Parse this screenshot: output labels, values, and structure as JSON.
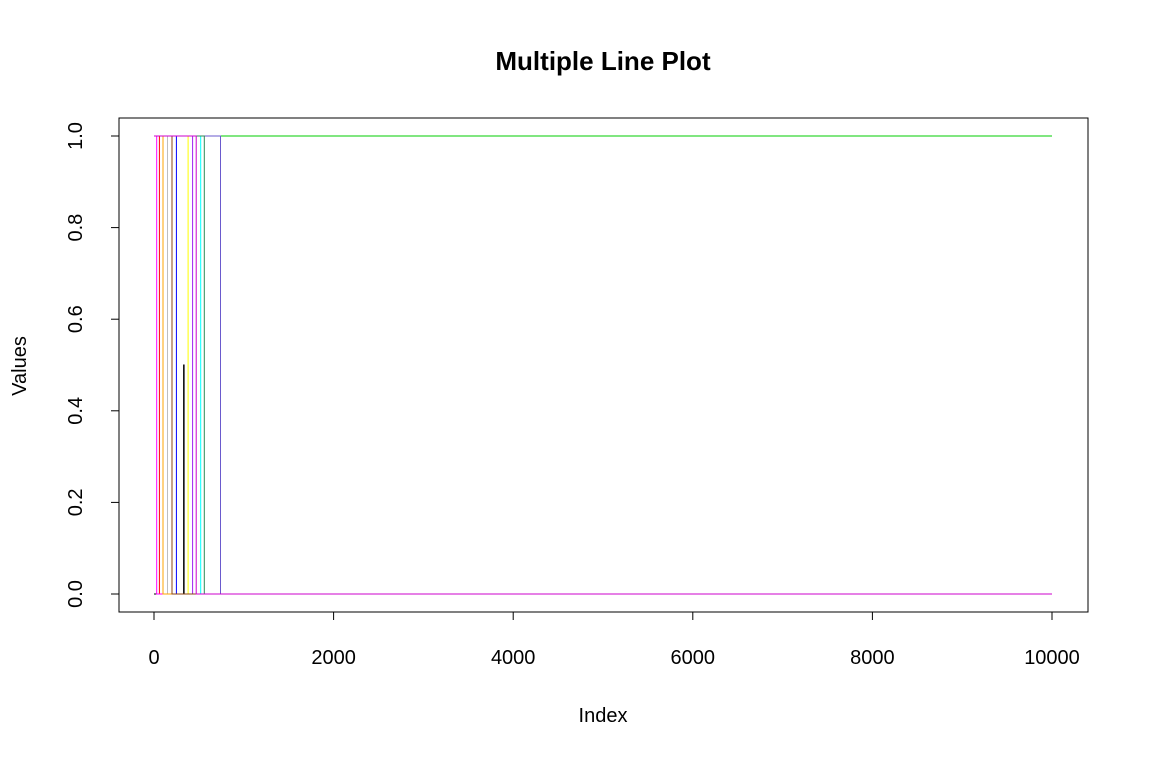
{
  "chart_data": {
    "type": "line",
    "title": "Multiple Line Plot",
    "xlabel": "Index",
    "ylabel": "Values",
    "xlim": [
      0,
      10000
    ],
    "ylim": [
      0,
      1
    ],
    "x_ticks": [
      "0",
      "2000",
      "4000",
      "6000",
      "8000",
      "10000"
    ],
    "y_ticks": [
      "0.0",
      "0.2",
      "0.4",
      "0.6",
      "0.8",
      "1.0"
    ],
    "grid": false,
    "legend": "none",
    "series": [
      {
        "color": "#000000",
        "points": [
          [
            0,
            0
          ],
          [
            330,
            0
          ],
          [
            330,
            0.5
          ],
          [
            335,
            0.5
          ],
          [
            335,
            0
          ],
          [
            10000,
            0
          ]
        ]
      },
      {
        "color": "#ff0000",
        "points": [
          [
            0,
            1
          ],
          [
            60,
            1
          ],
          [
            60,
            0
          ],
          [
            10000,
            0
          ]
        ]
      },
      {
        "color": "#00cd00",
        "points": [
          [
            0,
            1
          ],
          [
            10000,
            1
          ]
        ]
      },
      {
        "color": "#0000ff",
        "points": [
          [
            0,
            1
          ],
          [
            250,
            1
          ],
          [
            250,
            0
          ],
          [
            10000,
            0
          ]
        ]
      },
      {
        "color": "#00ffff",
        "points": [
          [
            0,
            1
          ],
          [
            520,
            1
          ],
          [
            520,
            0
          ],
          [
            10000,
            0
          ]
        ]
      },
      {
        "color": "#ff00ff",
        "points": [
          [
            0,
            1
          ],
          [
            30,
            1
          ],
          [
            30,
            0
          ],
          [
            10000,
            0
          ]
        ]
      },
      {
        "color": "#ffff00",
        "points": [
          [
            0,
            1
          ],
          [
            380,
            1
          ],
          [
            380,
            0
          ],
          [
            10000,
            0
          ]
        ]
      },
      {
        "color": "#bebebe",
        "points": [
          [
            0,
            1
          ],
          [
            150,
            1
          ],
          [
            150,
            0
          ],
          [
            10000,
            0
          ]
        ]
      },
      {
        "color": "#a020f0",
        "points": [
          [
            0,
            1
          ],
          [
            430,
            1
          ],
          [
            430,
            0
          ],
          [
            10000,
            0
          ]
        ]
      },
      {
        "color": "#6a5acd",
        "points": [
          [
            0,
            1
          ],
          [
            740,
            1
          ],
          [
            740,
            0
          ],
          [
            10000,
            0
          ]
        ]
      },
      {
        "color": "#2e8b57",
        "points": [
          [
            0,
            1
          ],
          [
            560,
            1
          ],
          [
            560,
            0
          ],
          [
            10000,
            0
          ]
        ]
      },
      {
        "color": "#ffa500",
        "points": [
          [
            0,
            1
          ],
          [
            100,
            1
          ],
          [
            100,
            0
          ],
          [
            10000,
            0
          ]
        ]
      },
      {
        "color": "#8b4513",
        "points": [
          [
            0,
            1
          ],
          [
            200,
            1
          ],
          [
            200,
            0
          ],
          [
            10000,
            0
          ]
        ]
      },
      {
        "color": "#cd00cd",
        "points": [
          [
            0,
            1
          ],
          [
            470,
            1
          ],
          [
            470,
            0
          ],
          [
            10000,
            0
          ]
        ]
      }
    ]
  }
}
